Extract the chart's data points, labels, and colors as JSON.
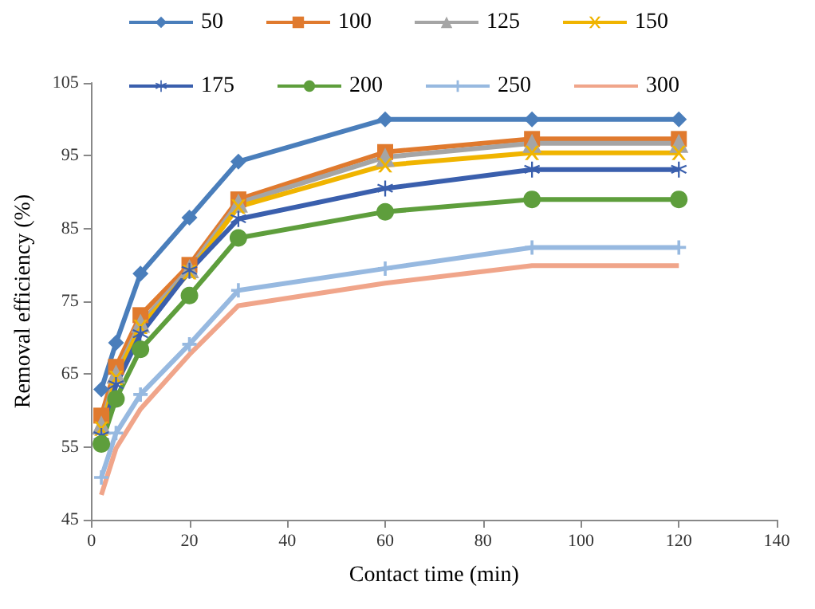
{
  "chart_data": {
    "type": "line",
    "xlabel": "Contact time (min)",
    "ylabel": "Removal efficiency (%)",
    "x": [
      2,
      5,
      10,
      20,
      30,
      60,
      90,
      120
    ],
    "xlim": [
      0,
      140
    ],
    "xticks": [
      0,
      20,
      40,
      60,
      80,
      100,
      120,
      140
    ],
    "ylim": [
      45,
      105
    ],
    "yticks": [
      45,
      55,
      65,
      75,
      85,
      95,
      105
    ],
    "grid": false,
    "legend": "top",
    "series": [
      {
        "name": "50",
        "color": "#4a7ebb",
        "marker": "diamond",
        "values": [
          62.9,
          69.3,
          78.8,
          86.5,
          94.2,
          100,
          100,
          100
        ]
      },
      {
        "name": "100",
        "color": "#e07a2e",
        "marker": "square",
        "values": [
          59.3,
          66,
          73.1,
          80,
          89,
          95.5,
          97.3,
          97.3
        ]
      },
      {
        "name": "125",
        "color": "#a5a5a5",
        "marker": "triangle",
        "values": [
          58,
          65,
          72,
          79.5,
          88.5,
          94.8,
          96.7,
          96.7
        ]
      },
      {
        "name": "150",
        "color": "#f0b400",
        "marker": "cross",
        "values": [
          57.5,
          64.5,
          71.5,
          79,
          88,
          93.7,
          95.4,
          95.4
        ]
      },
      {
        "name": "175",
        "color": "#3a5fad",
        "marker": "star",
        "values": [
          56.5,
          63.5,
          70.5,
          79.2,
          86.3,
          90.5,
          93.1,
          93.1
        ]
      },
      {
        "name": "200",
        "color": "#5e9e3c",
        "marker": "circle",
        "values": [
          55.4,
          61.6,
          68.4,
          75.8,
          83.7,
          87.3,
          89,
          89
        ]
      },
      {
        "name": "250",
        "color": "#97b9e0",
        "marker": "plus",
        "values": [
          50.8,
          56.9,
          62.2,
          69.1,
          76.5,
          79.5,
          82.4,
          82.4
        ]
      },
      {
        "name": "300",
        "color": "#f0a58a",
        "marker": "none",
        "values": [
          48.4,
          54.8,
          60.2,
          67.7,
          74.4,
          77.5,
          79.9,
          79.9
        ]
      }
    ]
  }
}
